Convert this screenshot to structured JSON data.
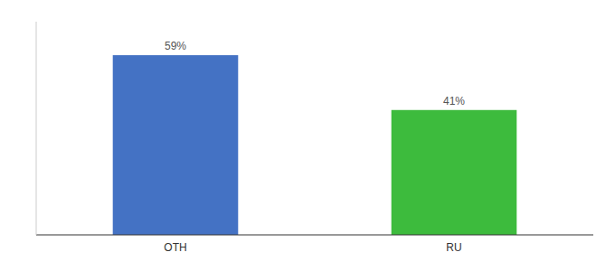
{
  "chart_data": {
    "type": "bar",
    "categories": [
      "OTH",
      "RU"
    ],
    "values": [
      59,
      41
    ],
    "value_labels": [
      "59%",
      "41%"
    ],
    "colors": [
      "#4472c4",
      "#3dbb3d"
    ],
    "ylim": [
      0,
      70
    ],
    "grid": false,
    "data_labels": true,
    "tick_labels": "x"
  }
}
